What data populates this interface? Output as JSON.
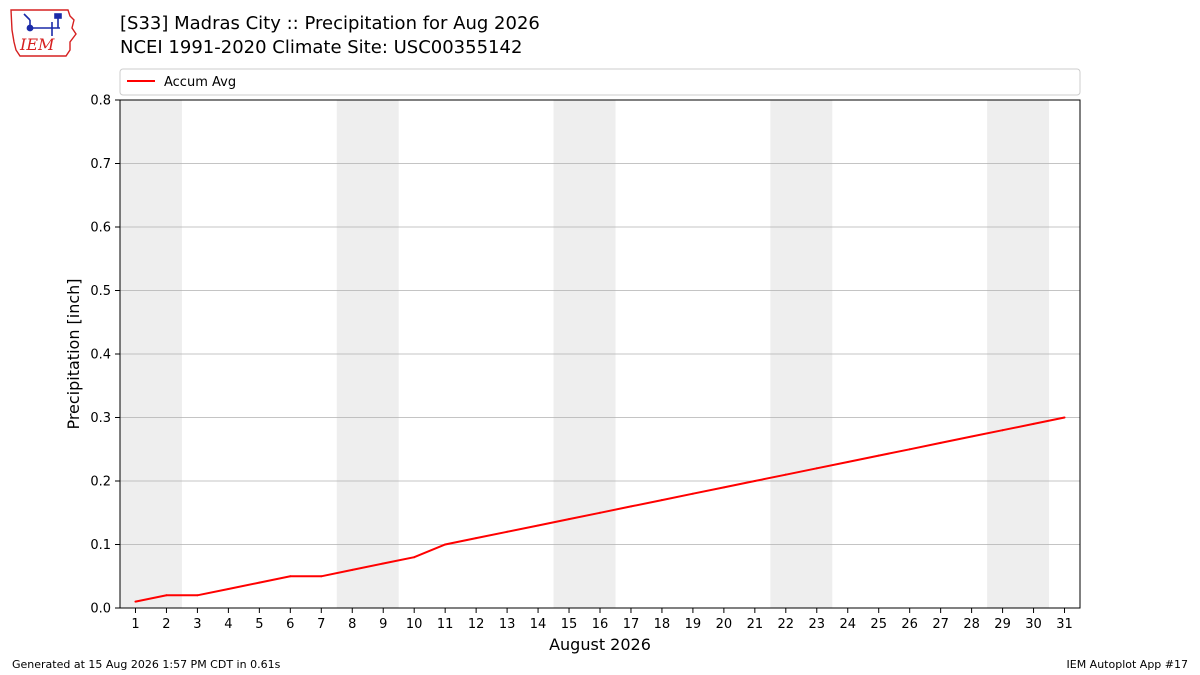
{
  "header": {
    "title_line1": "[S33] Madras City :: Precipitation for Aug 2026",
    "title_line2": "NCEI 1991-2020 Climate Site: USC00355142",
    "logo_text": "IEM"
  },
  "footer": {
    "generated": "Generated at 15 Aug 2026 1:57 PM CDT in 0.61s",
    "app": "IEM Autoplot App #17"
  },
  "colors": {
    "accum_line": "#ff0000",
    "weekend_shade": "#eeeeee",
    "grid": "#b0b0b0",
    "logo_red": "#d62020",
    "logo_blue": "#1a2aa8"
  },
  "chart_data": {
    "type": "line",
    "xlabel": "August 2026",
    "ylabel": "Precipitation [inch]",
    "xlim": [
      0.5,
      31.5
    ],
    "ylim": [
      0,
      0.8
    ],
    "yticks": [
      "0.0",
      "0.1",
      "0.2",
      "0.3",
      "0.4",
      "0.5",
      "0.6",
      "0.7",
      "0.8"
    ],
    "xticks": [
      "1",
      "2",
      "3",
      "4",
      "5",
      "6",
      "7",
      "8",
      "9",
      "10",
      "11",
      "12",
      "13",
      "14",
      "15",
      "16",
      "17",
      "18",
      "19",
      "20",
      "21",
      "22",
      "23",
      "24",
      "25",
      "26",
      "27",
      "28",
      "29",
      "30",
      "31"
    ],
    "grid": "horizontal",
    "legend_position": "top",
    "shaded_day_ranges": [
      [
        1,
        2
      ],
      [
        8,
        9
      ],
      [
        15,
        16
      ],
      [
        22,
        23
      ],
      [
        29,
        30
      ]
    ],
    "series": [
      {
        "name": "Accum Avg",
        "x": [
          1,
          2,
          3,
          4,
          5,
          6,
          7,
          8,
          9,
          10,
          11,
          12,
          13,
          14,
          15,
          16,
          17,
          18,
          19,
          20,
          21,
          22,
          23,
          24,
          25,
          26,
          27,
          28,
          29,
          30,
          31
        ],
        "values": [
          0.01,
          0.02,
          0.02,
          0.03,
          0.04,
          0.05,
          0.05,
          0.06,
          0.07,
          0.08,
          0.1,
          0.11,
          0.12,
          0.13,
          0.14,
          0.15,
          0.16,
          0.17,
          0.18,
          0.19,
          0.2,
          0.21,
          0.22,
          0.23,
          0.24,
          0.25,
          0.26,
          0.27,
          0.28,
          0.29,
          0.3
        ]
      }
    ]
  }
}
